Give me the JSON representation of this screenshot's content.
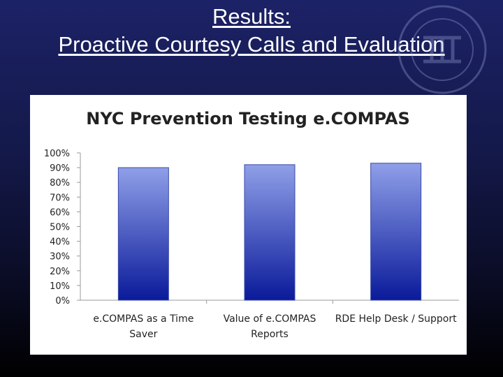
{
  "slide": {
    "title_line1": "Results:",
    "title_line2": "Proactive Courtesy Calls and Evaluation"
  },
  "colors": {
    "background_top": "#1c2266",
    "background_bottom": "#000000",
    "bar_top": "#8f9fe8",
    "bar_bottom": "#0a1a9a",
    "panel": "#ffffff"
  },
  "chart_data": {
    "type": "bar",
    "title": "NYC Prevention Testing e.COMPAS",
    "categories": [
      [
        "e.COMPAS as a Time",
        "Saver"
      ],
      [
        "Value of e.COMPAS",
        "Reports"
      ],
      [
        "RDE Help Desk / Support"
      ]
    ],
    "values": [
      0.9,
      0.92,
      0.93
    ],
    "ylim": [
      0,
      1
    ],
    "yticks": [
      "0%",
      "10%",
      "20%",
      "30%",
      "40%",
      "50%",
      "60%",
      "70%",
      "80%",
      "90%",
      "100%"
    ],
    "xlabel": "",
    "ylabel": "",
    "grid": false,
    "legend": false
  }
}
